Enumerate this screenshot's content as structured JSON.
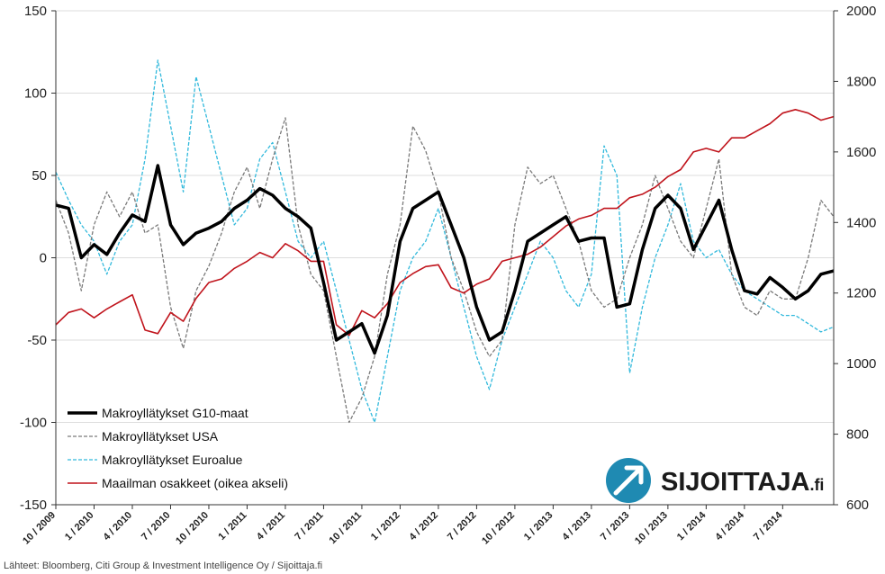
{
  "chart_data": {
    "type": "line",
    "left_axis": {
      "ylim": [
        -150,
        150
      ],
      "ticks": [
        "150",
        "100",
        "50",
        "0",
        "-50",
        "-100",
        "-150"
      ]
    },
    "right_axis": {
      "ylim": [
        600,
        2000
      ],
      "ticks": [
        "2000",
        "1800",
        "1600",
        "1400",
        "1200",
        "1000",
        "800",
        "600"
      ]
    },
    "x_ticks": [
      "10 / 2009",
      "1 / 2010",
      "4 / 2010",
      "7 / 2010",
      "10 / 2010",
      "1 / 2011",
      "4 / 2011",
      "7 / 2011",
      "10 / 2011",
      "1 / 2012",
      "4 / 2012",
      "7 / 2012",
      "10 / 2012",
      "1 / 2013",
      "4 / 2013",
      "7 / 2013",
      "10 / 2013",
      "1 / 2014",
      "4 / 2014",
      "7 / 2014"
    ],
    "x_range": [
      "2009-10",
      "2014-11"
    ],
    "grid": "horizontal",
    "legend_position": "bottom-left",
    "series": [
      {
        "name": "Makroyllätykset G10-maat",
        "axis": "left",
        "color": "#000000",
        "style": "solid-thick",
        "dates": [
          "2009-10",
          "2009-11",
          "2009-12",
          "2010-01",
          "2010-02",
          "2010-03",
          "2010-04",
          "2010-05",
          "2010-06",
          "2010-07",
          "2010-08",
          "2010-09",
          "2010-10",
          "2010-11",
          "2010-12",
          "2011-01",
          "2011-02",
          "2011-03",
          "2011-04",
          "2011-05",
          "2011-06",
          "2011-07",
          "2011-08",
          "2011-09",
          "2011-10",
          "2011-11",
          "2011-12",
          "2012-01",
          "2012-02",
          "2012-03",
          "2012-04",
          "2012-05",
          "2012-06",
          "2012-07",
          "2012-08",
          "2012-09",
          "2012-10",
          "2012-11",
          "2012-12",
          "2013-01",
          "2013-02",
          "2013-03",
          "2013-04",
          "2013-05",
          "2013-06",
          "2013-07",
          "2013-08",
          "2013-09",
          "2013-10",
          "2013-11",
          "2013-12",
          "2014-01",
          "2014-02",
          "2014-03",
          "2014-04",
          "2014-05",
          "2014-06",
          "2014-07",
          "2014-08",
          "2014-09",
          "2014-10",
          "2014-11"
        ],
        "values": [
          32,
          30,
          0,
          8,
          2,
          15,
          26,
          22,
          56,
          20,
          8,
          15,
          18,
          22,
          30,
          35,
          42,
          38,
          30,
          25,
          18,
          -15,
          -50,
          -45,
          -40,
          -58,
          -35,
          10,
          30,
          35,
          40,
          20,
          0,
          -30,
          -50,
          -45,
          -20,
          10,
          15,
          20,
          25,
          10,
          12,
          12,
          -30,
          -28,
          5,
          30,
          38,
          30,
          5,
          20,
          35,
          5,
          -20,
          -22,
          -12,
          -18,
          -25,
          -20,
          -10,
          -8
        ]
      },
      {
        "name": "Makroyllätykset USA",
        "axis": "left",
        "color": "#7a7a7a",
        "style": "dashed",
        "dates": [
          "2009-10",
          "2009-11",
          "2009-12",
          "2010-01",
          "2010-02",
          "2010-03",
          "2010-04",
          "2010-05",
          "2010-06",
          "2010-07",
          "2010-08",
          "2010-09",
          "2010-10",
          "2010-11",
          "2010-12",
          "2011-01",
          "2011-02",
          "2011-03",
          "2011-04",
          "2011-05",
          "2011-06",
          "2011-07",
          "2011-08",
          "2011-09",
          "2011-10",
          "2011-11",
          "2011-12",
          "2012-01",
          "2012-02",
          "2012-03",
          "2012-04",
          "2012-05",
          "2012-06",
          "2012-07",
          "2012-08",
          "2012-09",
          "2012-10",
          "2012-11",
          "2012-12",
          "2013-01",
          "2013-02",
          "2013-03",
          "2013-04",
          "2013-05",
          "2013-06",
          "2013-07",
          "2013-08",
          "2013-09",
          "2013-10",
          "2013-11",
          "2013-12",
          "2014-01",
          "2014-02",
          "2014-03",
          "2014-04",
          "2014-05",
          "2014-06",
          "2014-07",
          "2014-08",
          "2014-09",
          "2014-10",
          "2014-11"
        ],
        "values": [
          35,
          15,
          -20,
          20,
          40,
          25,
          40,
          15,
          20,
          -30,
          -55,
          -20,
          -5,
          15,
          40,
          55,
          30,
          60,
          85,
          20,
          -10,
          -20,
          -60,
          -100,
          -85,
          -60,
          -10,
          20,
          80,
          65,
          40,
          0,
          -20,
          -45,
          -60,
          -50,
          20,
          55,
          45,
          50,
          30,
          10,
          -20,
          -30,
          -25,
          0,
          20,
          50,
          30,
          10,
          0,
          30,
          60,
          -10,
          -30,
          -35,
          -20,
          -25,
          -25,
          0,
          35,
          25
        ]
      },
      {
        "name": "Makroyllätykset Euroalue",
        "axis": "left",
        "color": "#31b9dc",
        "style": "dashed",
        "dates": [
          "2009-10",
          "2009-11",
          "2009-12",
          "2010-01",
          "2010-02",
          "2010-03",
          "2010-04",
          "2010-05",
          "2010-06",
          "2010-07",
          "2010-08",
          "2010-09",
          "2010-10",
          "2010-11",
          "2010-12",
          "2011-01",
          "2011-02",
          "2011-03",
          "2011-04",
          "2011-05",
          "2011-06",
          "2011-07",
          "2011-08",
          "2011-09",
          "2011-10",
          "2011-11",
          "2011-12",
          "2012-01",
          "2012-02",
          "2012-03",
          "2012-04",
          "2012-05",
          "2012-06",
          "2012-07",
          "2012-08",
          "2012-09",
          "2012-10",
          "2012-11",
          "2012-12",
          "2013-01",
          "2013-02",
          "2013-03",
          "2013-04",
          "2013-05",
          "2013-06",
          "2013-07",
          "2013-08",
          "2013-09",
          "2013-10",
          "2013-11",
          "2013-12",
          "2014-01",
          "2014-02",
          "2014-03",
          "2014-04",
          "2014-05",
          "2014-06",
          "2014-07",
          "2014-08",
          "2014-09",
          "2014-10",
          "2014-11"
        ],
        "values": [
          52,
          35,
          20,
          10,
          -10,
          10,
          20,
          60,
          120,
          80,
          40,
          110,
          80,
          50,
          20,
          30,
          60,
          70,
          40,
          10,
          0,
          10,
          -20,
          -50,
          -80,
          -100,
          -60,
          -20,
          0,
          10,
          30,
          0,
          -30,
          -60,
          -80,
          -50,
          -30,
          -10,
          10,
          0,
          -20,
          -30,
          -10,
          68,
          50,
          -70,
          -30,
          0,
          20,
          45,
          10,
          0,
          5,
          -10,
          -20,
          -25,
          -30,
          -35,
          -35,
          -40,
          -45,
          -42
        ]
      },
      {
        "name": "Maailman osakkeet (oikea akseli)",
        "axis": "right",
        "color": "#c0141c",
        "style": "solid",
        "dates": [
          "2009-10",
          "2009-11",
          "2009-12",
          "2010-01",
          "2010-02",
          "2010-03",
          "2010-04",
          "2010-05",
          "2010-06",
          "2010-07",
          "2010-08",
          "2010-09",
          "2010-10",
          "2010-11",
          "2010-12",
          "2011-01",
          "2011-02",
          "2011-03",
          "2011-04",
          "2011-05",
          "2011-06",
          "2011-07",
          "2011-08",
          "2011-09",
          "2011-10",
          "2011-11",
          "2011-12",
          "2012-01",
          "2012-02",
          "2012-03",
          "2012-04",
          "2012-05",
          "2012-06",
          "2012-07",
          "2012-08",
          "2012-09",
          "2012-10",
          "2012-11",
          "2012-12",
          "2013-01",
          "2013-02",
          "2013-03",
          "2013-04",
          "2013-05",
          "2013-06",
          "2013-07",
          "2013-08",
          "2013-09",
          "2013-10",
          "2013-11",
          "2013-12",
          "2014-01",
          "2014-02",
          "2014-03",
          "2014-04",
          "2014-05",
          "2014-06",
          "2014-07",
          "2014-08",
          "2014-09",
          "2014-10",
          "2014-11"
        ],
        "values": [
          1110,
          1145,
          1155,
          1130,
          1155,
          1175,
          1195,
          1095,
          1085,
          1145,
          1120,
          1185,
          1230,
          1240,
          1270,
          1290,
          1315,
          1300,
          1340,
          1320,
          1290,
          1290,
          1110,
          1080,
          1150,
          1130,
          1170,
          1230,
          1255,
          1275,
          1280,
          1215,
          1200,
          1225,
          1240,
          1290,
          1300,
          1310,
          1330,
          1360,
          1390,
          1410,
          1420,
          1440,
          1440,
          1470,
          1480,
          1500,
          1530,
          1550,
          1600,
          1610,
          1600,
          1640,
          1640,
          1660,
          1680,
          1710,
          1720,
          1710,
          1690,
          1700
        ]
      }
    ]
  },
  "source_text": "Lähteet: Bloomberg, Citi Group & Investment Intelligence Oy / Sijoittaja.fi",
  "brand": {
    "name": "SIJOITTAJA",
    "suffix": ".fi"
  },
  "colors": {
    "logo_circle": "#1f8ab2",
    "grid": "#dddddd"
  }
}
